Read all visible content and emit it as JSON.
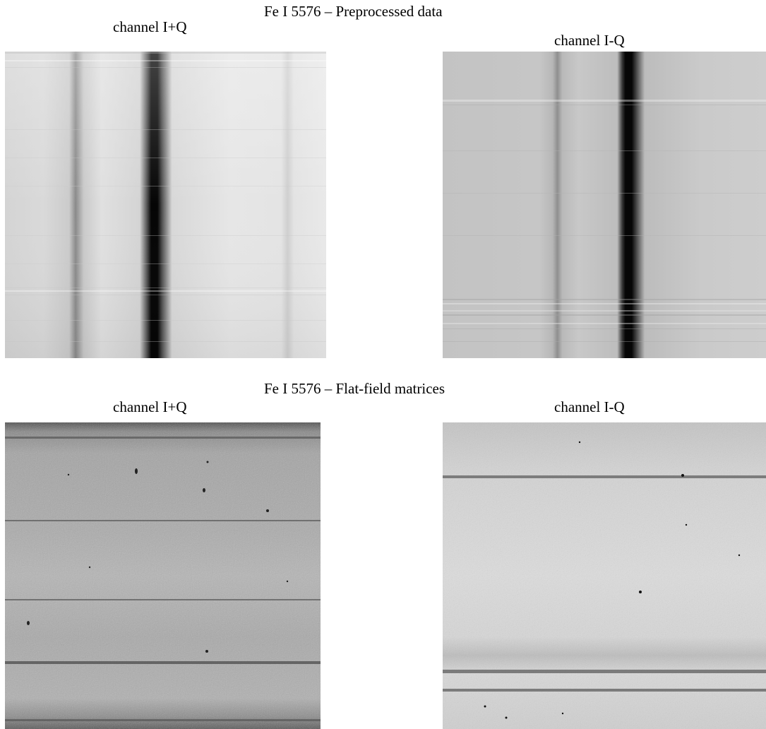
{
  "figure": {
    "section_top_title": "Fe I 5576 – Preprocessed data",
    "section_bottom_title": "Fe I 5576 – Flat-field matrices",
    "panels": [
      {
        "label": "channel I+Q"
      },
      {
        "label": "channel I-Q"
      },
      {
        "label": "channel I+Q"
      },
      {
        "label": "channel I-Q"
      }
    ]
  }
}
